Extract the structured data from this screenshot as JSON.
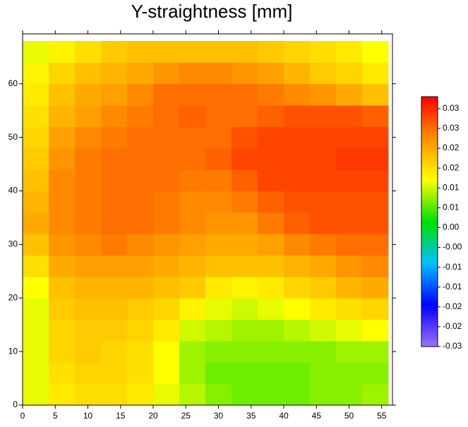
{
  "chart_data": {
    "type": "heatmap",
    "title": "Y-straightness [mm]",
    "x": [
      2,
      6,
      10,
      14,
      18,
      22,
      26,
      30,
      34,
      38,
      42,
      46,
      50,
      54
    ],
    "y": [
      2,
      6,
      10,
      14,
      18,
      22,
      26,
      30,
      34,
      38,
      42,
      46,
      50,
      54,
      58,
      62,
      66
    ],
    "z": [
      [
        0.011,
        0.014,
        0.015,
        0.015,
        0.014,
        0.011,
        0.009,
        0.007,
        0.006,
        0.006,
        0.006,
        0.007,
        0.007,
        0.008
      ],
      [
        0.011,
        0.015,
        0.016,
        0.016,
        0.015,
        0.012,
        0.008,
        0.006,
        0.006,
        0.006,
        0.006,
        0.007,
        0.007,
        0.007
      ],
      [
        0.011,
        0.016,
        0.017,
        0.016,
        0.015,
        0.012,
        0.008,
        0.007,
        0.007,
        0.007,
        0.007,
        0.007,
        0.008,
        0.008
      ],
      [
        0.011,
        0.016,
        0.017,
        0.017,
        0.016,
        0.014,
        0.01,
        0.009,
        0.008,
        0.008,
        0.009,
        0.01,
        0.011,
        0.012
      ],
      [
        0.011,
        0.017,
        0.018,
        0.018,
        0.017,
        0.016,
        0.013,
        0.011,
        0.01,
        0.011,
        0.012,
        0.014,
        0.015,
        0.016
      ],
      [
        0.012,
        0.018,
        0.019,
        0.019,
        0.019,
        0.018,
        0.017,
        0.014,
        0.013,
        0.014,
        0.016,
        0.017,
        0.019,
        0.02
      ],
      [
        0.015,
        0.02,
        0.021,
        0.021,
        0.021,
        0.02,
        0.019,
        0.018,
        0.018,
        0.018,
        0.019,
        0.02,
        0.022,
        0.023
      ],
      [
        0.018,
        0.022,
        0.023,
        0.024,
        0.023,
        0.022,
        0.021,
        0.02,
        0.02,
        0.021,
        0.023,
        0.024,
        0.025,
        0.025
      ],
      [
        0.02,
        0.023,
        0.024,
        0.025,
        0.025,
        0.024,
        0.023,
        0.022,
        0.022,
        0.024,
        0.026,
        0.027,
        0.027,
        0.027
      ],
      [
        0.019,
        0.023,
        0.024,
        0.025,
        0.025,
        0.024,
        0.023,
        0.023,
        0.024,
        0.026,
        0.027,
        0.027,
        0.027,
        0.027
      ],
      [
        0.018,
        0.023,
        0.024,
        0.025,
        0.025,
        0.025,
        0.024,
        0.024,
        0.026,
        0.028,
        0.028,
        0.028,
        0.028,
        0.028
      ],
      [
        0.017,
        0.022,
        0.024,
        0.025,
        0.025,
        0.025,
        0.025,
        0.026,
        0.028,
        0.028,
        0.028,
        0.028,
        0.029,
        0.029
      ],
      [
        0.016,
        0.021,
        0.023,
        0.024,
        0.025,
        0.025,
        0.025,
        0.025,
        0.027,
        0.028,
        0.028,
        0.028,
        0.028,
        0.028
      ],
      [
        0.015,
        0.019,
        0.021,
        0.023,
        0.024,
        0.025,
        0.026,
        0.025,
        0.025,
        0.026,
        0.027,
        0.027,
        0.027,
        0.026
      ],
      [
        0.014,
        0.018,
        0.02,
        0.021,
        0.023,
        0.025,
        0.025,
        0.025,
        0.025,
        0.024,
        0.023,
        0.022,
        0.02,
        0.018
      ],
      [
        0.013,
        0.016,
        0.018,
        0.019,
        0.02,
        0.022,
        0.023,
        0.023,
        0.022,
        0.021,
        0.019,
        0.017,
        0.016,
        0.014
      ],
      [
        0.011,
        0.013,
        0.015,
        0.017,
        0.018,
        0.018,
        0.018,
        0.018,
        0.018,
        0.017,
        0.016,
        0.015,
        0.014,
        0.012
      ]
    ],
    "xlim": [
      0,
      56
    ],
    "ylim": [
      0,
      68
    ],
    "xticks": [
      0,
      5,
      10,
      15,
      20,
      25,
      30,
      35,
      40,
      45,
      50,
      55
    ],
    "yticks": [
      0,
      10,
      20,
      30,
      40,
      50,
      60
    ],
    "zlim": [
      -0.03,
      0.033
    ],
    "colorscale": [
      "#a070ff",
      "#0000ff",
      "#00c0ff",
      "#00e000",
      "#ffff00",
      "#ff9000",
      "#ff0000"
    ],
    "zticks": [
      {
        "value": -0.03,
        "label": "-0.03"
      },
      {
        "value": -0.025,
        "label": "-0.02"
      },
      {
        "value": -0.02,
        "label": "-0.02"
      },
      {
        "value": -0.015,
        "label": "-0.01"
      },
      {
        "value": -0.01,
        "label": "-0.01"
      },
      {
        "value": -0.005,
        "label": "-0.00"
      },
      {
        "value": 0,
        "label": "0.00"
      },
      {
        "value": 0.005,
        "label": "0.01"
      },
      {
        "value": 0.01,
        "label": "0.01"
      },
      {
        "value": 0.015,
        "label": "0.02"
      },
      {
        "value": 0.02,
        "label": "0.02"
      },
      {
        "value": 0.025,
        "label": "0.03"
      },
      {
        "value": 0.03,
        "label": "0.03"
      }
    ]
  }
}
